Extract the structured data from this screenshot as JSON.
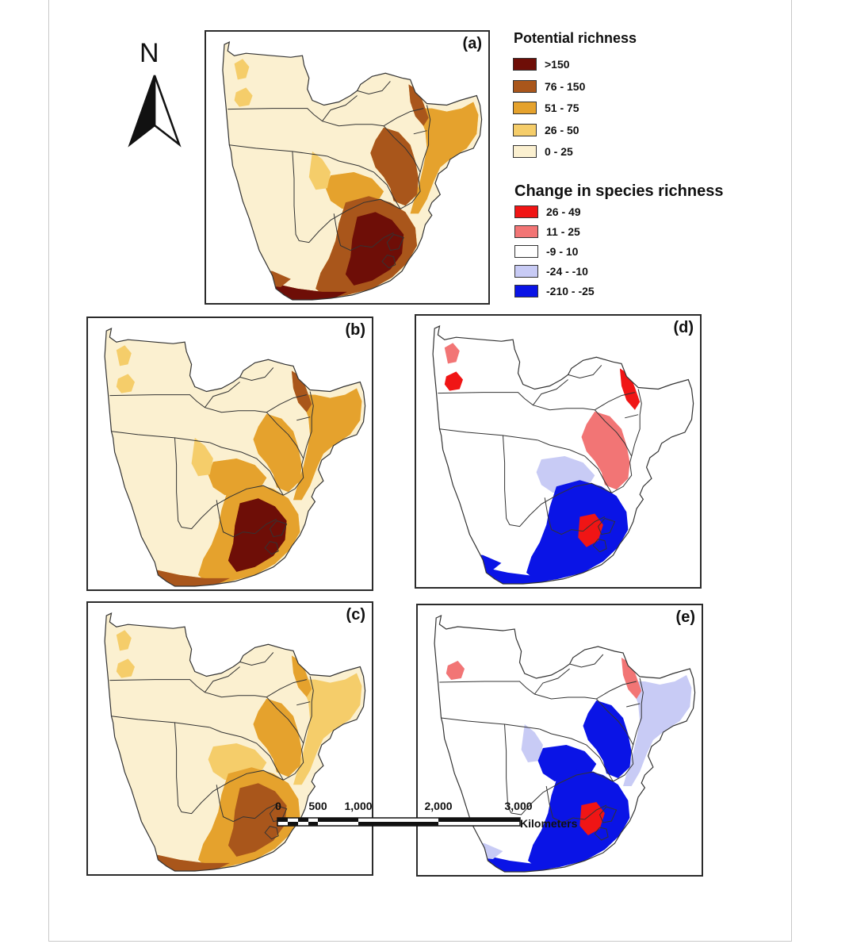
{
  "panels": {
    "a": {
      "label": "(a)",
      "scheme": "richness",
      "level": 3
    },
    "b": {
      "label": "(b)",
      "scheme": "richness",
      "level": 2
    },
    "c": {
      "label": "(c)",
      "scheme": "richness",
      "level": 1
    },
    "d": {
      "label": "(d)",
      "scheme": "change",
      "level": 1
    },
    "e": {
      "label": "(e)",
      "scheme": "change",
      "level": 2
    }
  },
  "north_arrow": {
    "letter": "N"
  },
  "legend_richness": {
    "title": "Potential richness",
    "items": [
      {
        "label": ">150",
        "color": "#6e0e07"
      },
      {
        "label": "76 - 150",
        "color": "#a9561b"
      },
      {
        "label": "51 - 75",
        "color": "#e5a22d"
      },
      {
        "label": "26 - 50",
        "color": "#f5cd6a"
      },
      {
        "label": "0 - 25",
        "color": "#fbf0d0"
      }
    ]
  },
  "legend_change": {
    "title": "Change in species richness",
    "items": [
      {
        "label": "26 - 49",
        "color": "#f01515"
      },
      {
        "label": "11 - 25",
        "color": "#f27575"
      },
      {
        "label": "-9 - 10",
        "color": "#ffffff"
      },
      {
        "label": "-24 - -10",
        "color": "#c8cbf5"
      },
      {
        "label": "-210 - -25",
        "color": "#0a14e6"
      }
    ]
  },
  "scale_bar": {
    "ticks": [
      "0",
      "500",
      "1,000",
      "2,000",
      "3,000"
    ],
    "unit": "Kilometers"
  }
}
